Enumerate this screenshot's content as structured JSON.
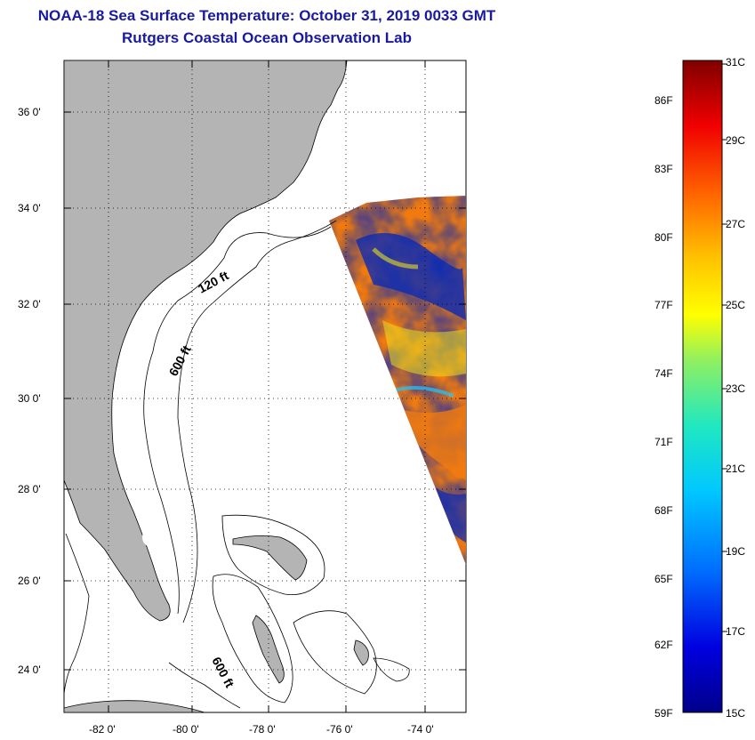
{
  "title": "NOAA-18 Sea Surface Temperature:  October 31, 2019 0033 GMT",
  "subtitle": "Rutgers Coastal Ocean Observation Lab",
  "map": {
    "lat_labels": [
      "36 0'",
      "34 0'",
      "32 0'",
      "30 0'",
      "28 0'",
      "26 0'",
      "24 0'"
    ],
    "lon_labels": [
      "-82 0'",
      "-80 0'",
      "-78 0'",
      "-76 0'",
      "-74 0'"
    ],
    "contour_labels": [
      "120 ft",
      "600 ft",
      "600 ft"
    ]
  },
  "colorbar": {
    "fahrenheit_labels": [
      "86F",
      "83F",
      "80F",
      "77F",
      "74F",
      "71F",
      "68F",
      "65F",
      "62F",
      "59F"
    ],
    "celsius_labels": [
      "31C",
      "29C",
      "27C",
      "25C",
      "23C",
      "21C",
      "19C",
      "17C",
      "15C"
    ]
  },
  "colors": {
    "title": "#1a1aa0",
    "land": "#b4b4b4",
    "sst_warm": "#f07a10",
    "sst_mid": "#e8e020",
    "sst_cool": "#0a2ab4"
  }
}
